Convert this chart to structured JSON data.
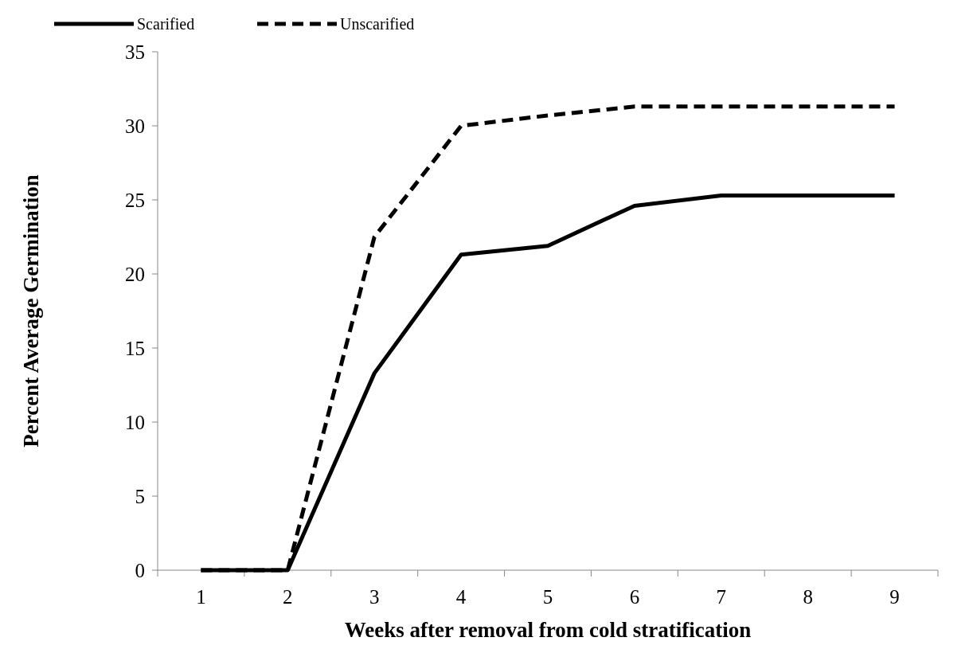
{
  "chart_data": {
    "type": "line",
    "xlabel": "Weeks after removal from cold stratification",
    "ylabel": "Percent Average Germination",
    "categories": [
      "1",
      "2",
      "3",
      "4",
      "5",
      "6",
      "7",
      "8",
      "9"
    ],
    "series": [
      {
        "name": "Scarified",
        "color": "#000000",
        "line_style": "solid",
        "values": [
          0,
          0,
          13.3,
          21.3,
          21.9,
          24.6,
          25.3,
          25.3,
          25.3
        ]
      },
      {
        "name": "Unscarified",
        "color": "#000000",
        "line_style": "dashed",
        "values": [
          0,
          0,
          22.5,
          30.0,
          30.7,
          31.3,
          31.3,
          31.3,
          31.3
        ]
      }
    ],
    "ylim": [
      0,
      35
    ],
    "yticks": [
      0,
      5,
      10,
      15,
      20,
      25,
      30,
      35
    ],
    "grid": false,
    "legend": "top left",
    "marker": "none"
  }
}
